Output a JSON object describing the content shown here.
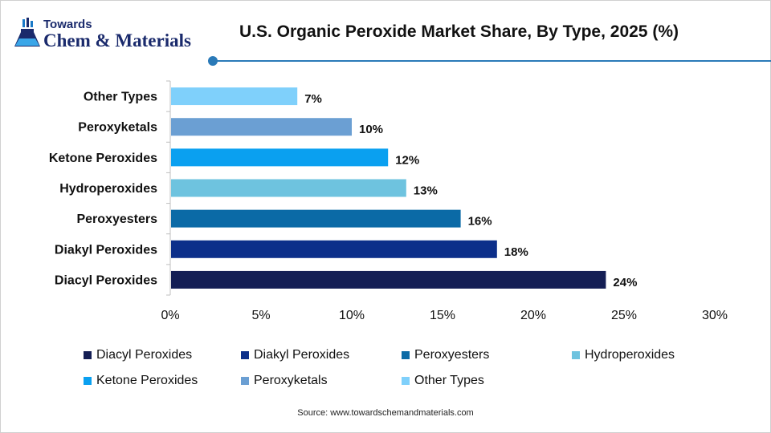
{
  "logo": {
    "top_text": "Towards",
    "bottom_text": "Chem & Materials"
  },
  "source": "Source:  www.towardschemandmaterials.com",
  "chart_data": {
    "type": "bar",
    "orientation": "horizontal",
    "title": "U.S. Organic Peroxide Market Share, By Type, 2025 (%)",
    "categories": [
      "Diacyl Peroxides",
      "Diakyl Peroxides",
      "Peroxyesters",
      "Hydroperoxides",
      "Ketone Peroxides",
      "Peroxyketals",
      "Other Types"
    ],
    "values": [
      24,
      18,
      16,
      13,
      12,
      10,
      7
    ],
    "value_labels": [
      "24%",
      "18%",
      "16%",
      "13%",
      "12%",
      "10%",
      "7%"
    ],
    "colors": [
      "#141e54",
      "#0c2f8a",
      "#0b6aa6",
      "#6ec3df",
      "#0aa0f0",
      "#6b9fd3",
      "#7fd0fb"
    ],
    "xlim": [
      0,
      30
    ],
    "x_ticks": [
      0,
      5,
      10,
      15,
      20,
      25,
      30
    ],
    "x_tick_labels": [
      "0%",
      "5%",
      "10%",
      "15%",
      "20%",
      "25%",
      "30%"
    ],
    "xlabel": "",
    "ylabel": "",
    "grid": false,
    "legend": {
      "placement": "bottom",
      "entries": [
        "Diacyl Peroxides",
        "Diakyl Peroxides",
        "Peroxyesters",
        "Hydroperoxides",
        "Ketone Peroxides",
        "Peroxyketals",
        "Other Types"
      ]
    }
  }
}
